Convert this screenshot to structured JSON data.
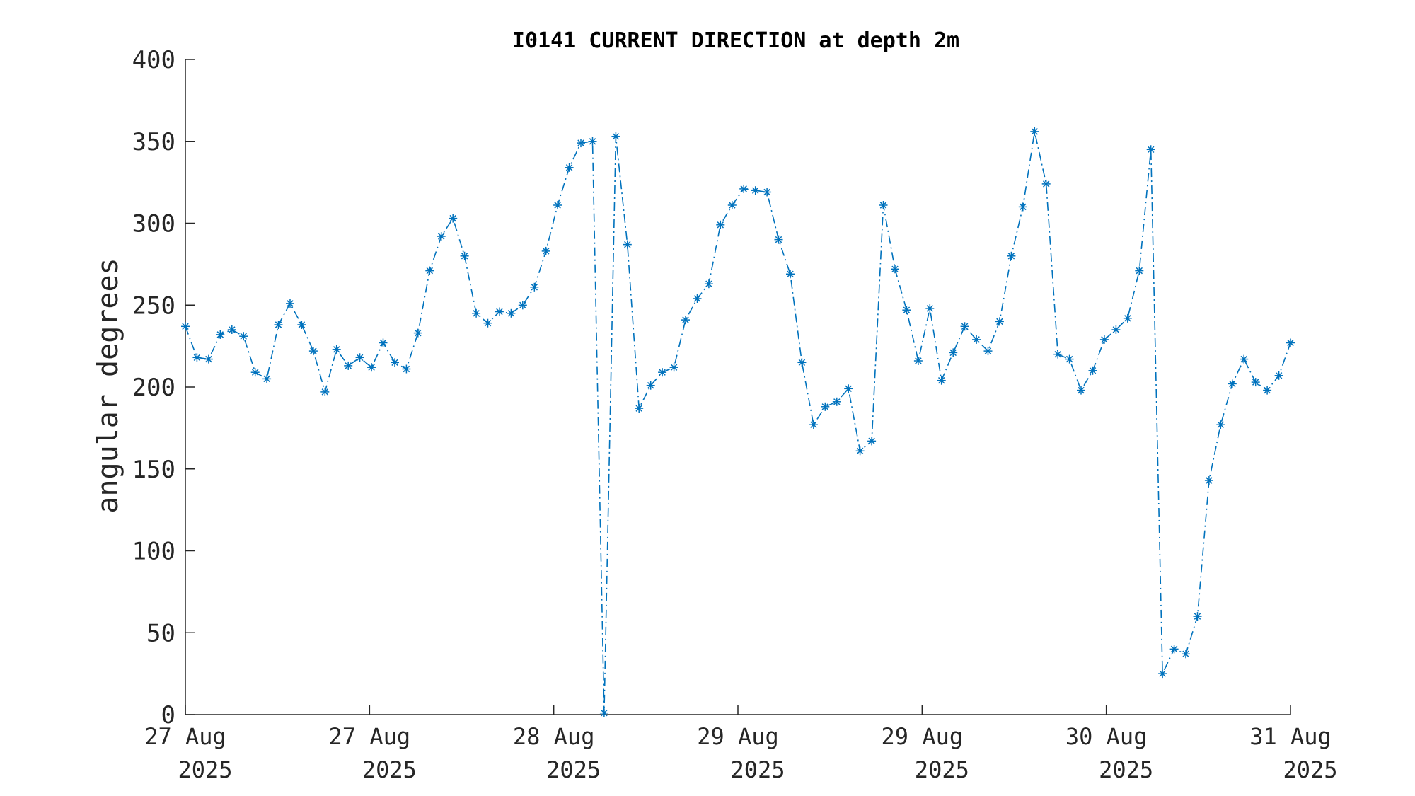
{
  "chart_data": {
    "type": "line",
    "title": "I0141 CURRENT DIRECTION at depth 2m",
    "xlabel": "",
    "ylabel": "angular degrees",
    "ylim": [
      0,
      400
    ],
    "xlim_days": [
      0,
      6
    ],
    "y_ticks": [
      0,
      50,
      100,
      150,
      200,
      250,
      300,
      350,
      400
    ],
    "y_tick_labels": [
      "0",
      "50",
      "100",
      "150",
      "200",
      "250",
      "300",
      "350",
      "400"
    ],
    "x_ticks": [
      {
        "pos": 0,
        "line1": "27 Aug",
        "line2": "2025"
      },
      {
        "pos": 1,
        "line1": "27 Aug",
        "line2": "2025"
      },
      {
        "pos": 2,
        "line1": "28 Aug",
        "line2": "2025"
      },
      {
        "pos": 3,
        "line1": "29 Aug",
        "line2": "2025"
      },
      {
        "pos": 4,
        "line1": "29 Aug",
        "line2": "2025"
      },
      {
        "pos": 5,
        "line1": "30 Aug",
        "line2": "2025"
      },
      {
        "pos": 6,
        "line1": "31 Aug",
        "line2": "2025"
      }
    ],
    "line_color": "#0072bd",
    "marker": "asterisk",
    "line_style": "dash-dot",
    "series": [
      {
        "values": [
          237,
          218,
          217,
          232,
          235,
          231,
          209,
          205,
          238,
          251,
          238,
          222,
          197,
          223,
          213,
          218,
          212,
          227,
          215,
          211,
          233,
          271,
          292,
          303,
          280,
          245,
          239,
          246,
          245,
          250,
          261,
          283,
          311,
          334,
          349,
          350,
          1,
          353,
          287,
          187,
          201,
          209,
          212,
          241,
          254,
          263,
          299,
          311,
          321,
          320,
          319,
          290,
          269,
          215,
          177,
          188,
          191,
          199,
          161,
          167,
          311,
          272,
          247,
          216,
          248,
          204,
          221,
          237,
          229,
          222,
          240,
          280,
          310,
          356,
          324,
          220,
          217,
          198,
          210,
          229,
          235,
          242,
          271,
          345,
          25,
          40,
          37,
          60,
          143,
          177,
          202,
          217,
          203,
          198,
          207,
          227
        ]
      }
    ]
  }
}
